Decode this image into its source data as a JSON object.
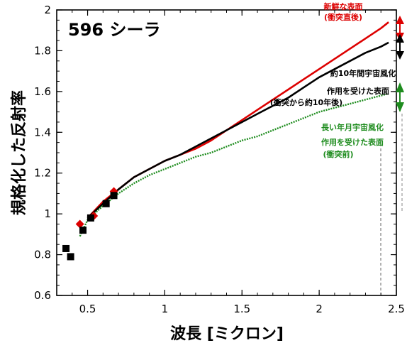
{
  "chart_data": {
    "type": "line",
    "title": "596 シーラ",
    "xlabel": "波長 [ミクロン]",
    "ylabel": "規格化した反射率",
    "xlim": [
      0.3,
      2.5
    ],
    "ylim": [
      0.6,
      2.0
    ],
    "x_ticks": [
      0.5,
      1,
      1.5,
      2,
      2.5
    ],
    "x_tick_labels": [
      "0.5",
      "1",
      "1.5",
      "2",
      "2.5"
    ],
    "y_ticks": [
      0.6,
      0.8,
      1,
      1.2,
      1.4,
      1.6,
      1.8,
      2
    ],
    "y_tick_labels": [
      "0.6",
      "0.8",
      "1",
      "1.2",
      "1.4",
      "1.6",
      "1.8",
      "2"
    ],
    "grid": false,
    "colors": {
      "red": "#dd0000",
      "black": "#000000",
      "green": "#1e8c1e"
    },
    "series": [
      {
        "name": "新鮮な表面(衝突直後)",
        "color": "#dd0000",
        "x": [
          0.5,
          0.6,
          0.7,
          0.8,
          0.9,
          1.0,
          1.1,
          1.2,
          1.3,
          1.4,
          1.5,
          1.6,
          1.7,
          1.8,
          1.9,
          2.0,
          2.1,
          2.2,
          2.3,
          2.4,
          2.45
        ],
        "y": [
          0.98,
          1.06,
          1.12,
          1.18,
          1.22,
          1.26,
          1.29,
          1.32,
          1.36,
          1.41,
          1.46,
          1.51,
          1.56,
          1.61,
          1.66,
          1.71,
          1.76,
          1.81,
          1.86,
          1.91,
          1.94
        ]
      },
      {
        "name": "約10年間宇宙風化作用を受けた表面(衝突から約10年後)",
        "color": "#000000",
        "x": [
          0.5,
          0.6,
          0.7,
          0.8,
          0.9,
          1.0,
          1.1,
          1.2,
          1.3,
          1.4,
          1.5,
          1.6,
          1.7,
          1.8,
          1.9,
          2.0,
          2.1,
          2.2,
          2.3,
          2.4,
          2.45
        ],
        "y": [
          0.98,
          1.05,
          1.12,
          1.18,
          1.22,
          1.26,
          1.29,
          1.33,
          1.37,
          1.41,
          1.45,
          1.49,
          1.53,
          1.57,
          1.62,
          1.67,
          1.71,
          1.75,
          1.79,
          1.82,
          1.84
        ]
      },
      {
        "name": "長い年月宇宙風化作用を受けた表面(衝突前)",
        "color": "#1e8c1e",
        "x": [
          0.45,
          0.5,
          0.6,
          0.7,
          0.8,
          0.9,
          1.0,
          1.1,
          1.2,
          1.3,
          1.4,
          1.5,
          1.6,
          1.7,
          1.8,
          1.9,
          2.0,
          2.1,
          2.2,
          2.3,
          2.4,
          2.45
        ],
        "y": [
          0.89,
          0.97,
          1.04,
          1.1,
          1.15,
          1.19,
          1.22,
          1.25,
          1.28,
          1.3,
          1.33,
          1.36,
          1.38,
          1.41,
          1.44,
          1.47,
          1.5,
          1.52,
          1.54,
          1.56,
          1.58,
          1.59
        ]
      }
    ],
    "black_squares": {
      "x": [
        0.36,
        0.39,
        0.47,
        0.52,
        0.62,
        0.67
      ],
      "y": [
        0.83,
        0.79,
        0.92,
        0.98,
        1.05,
        1.09
      ]
    },
    "red_diamonds": {
      "x": [
        0.45,
        0.54,
        0.67
      ],
      "y": [
        0.95,
        0.99,
        1.11
      ]
    },
    "annotations": {
      "red_label_1": "新鮮な表面",
      "red_label_2": "(衝突直後)",
      "black_label_1": "約10年間宇宙風化",
      "black_label_2": "作用を受けた表面",
      "black_label_3": "(衝突から約10年後)",
      "green_label_1": "長い年月宇宙風化",
      "green_label_2": "作用を受けた表面",
      "green_label_3": "(衝突前)"
    }
  }
}
